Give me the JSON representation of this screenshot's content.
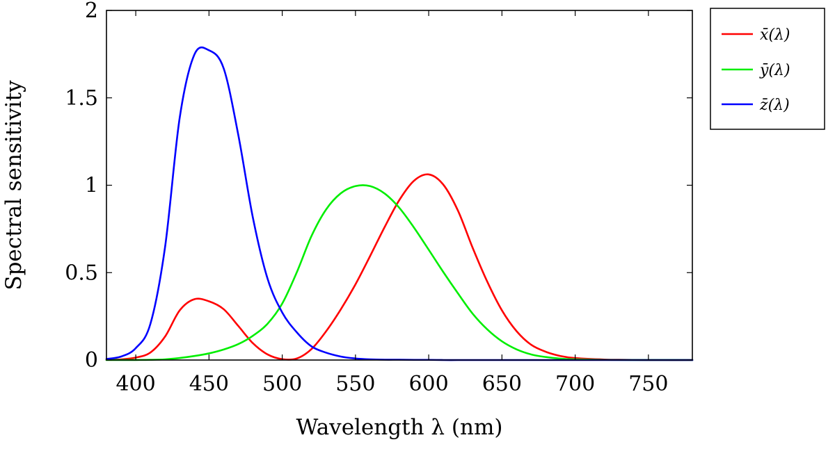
{
  "chart_data": {
    "type": "line",
    "title": "",
    "xlabel": "Wavelength λ (nm)",
    "ylabel": "Spectral sensitivity",
    "xlim": [
      380,
      780
    ],
    "ylim": [
      0,
      2
    ],
    "x_ticks": [
      400,
      450,
      500,
      550,
      600,
      650,
      700,
      750
    ],
    "y_ticks": [
      0,
      0.5,
      1,
      1.5,
      2
    ],
    "y_tick_labels": [
      "0",
      "0.5",
      "1",
      "1.5",
      "2"
    ],
    "grid": false,
    "legend_position": "outside-right-top",
    "x": [
      380,
      390,
      400,
      410,
      420,
      430,
      440,
      450,
      460,
      470,
      480,
      490,
      500,
      510,
      520,
      530,
      540,
      550,
      560,
      570,
      580,
      590,
      600,
      610,
      620,
      630,
      640,
      650,
      660,
      670,
      680,
      690,
      700,
      720,
      740,
      760,
      780
    ],
    "series": [
      {
        "name": "x̄(λ)",
        "color": "#ff0000",
        "values": [
          0.001,
          0.004,
          0.014,
          0.043,
          0.134,
          0.284,
          0.348,
          0.336,
          0.291,
          0.195,
          0.096,
          0.032,
          0.005,
          0.009,
          0.063,
          0.165,
          0.29,
          0.433,
          0.595,
          0.762,
          0.916,
          1.026,
          1.062,
          1.003,
          0.854,
          0.642,
          0.448,
          0.284,
          0.165,
          0.087,
          0.047,
          0.023,
          0.011,
          0.003,
          0.001,
          0.0,
          0.0
        ]
      },
      {
        "name": "ȳ(λ)",
        "color": "#00ee00",
        "values": [
          0.0,
          0.0001,
          0.0004,
          0.0012,
          0.004,
          0.0116,
          0.023,
          0.038,
          0.06,
          0.091,
          0.139,
          0.208,
          0.323,
          0.503,
          0.71,
          0.862,
          0.954,
          0.995,
          0.995,
          0.952,
          0.87,
          0.757,
          0.631,
          0.503,
          0.381,
          0.265,
          0.175,
          0.107,
          0.061,
          0.032,
          0.017,
          0.008,
          0.004,
          0.001,
          0.0003,
          0.0001,
          0.0
        ]
      },
      {
        "name": "z̄(λ)",
        "color": "#0000ff",
        "values": [
          0.006,
          0.02,
          0.068,
          0.207,
          0.646,
          1.386,
          1.747,
          1.772,
          1.669,
          1.288,
          0.813,
          0.465,
          0.272,
          0.158,
          0.078,
          0.042,
          0.02,
          0.009,
          0.004,
          0.002,
          0.002,
          0.001,
          0.001,
          0.0,
          0.0,
          0.0,
          0.0,
          0.0,
          0.0,
          0.0,
          0.0,
          0.0,
          0.0,
          0.0,
          0.0,
          0.0,
          0.0
        ]
      }
    ]
  }
}
